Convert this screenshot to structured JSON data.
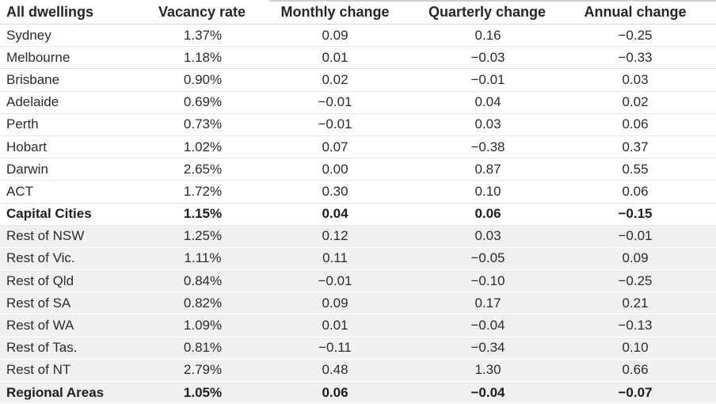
{
  "headers": [
    "All dwellings",
    "Vacancy rate",
    "Monthly change",
    "Quarterly change",
    "Annual change"
  ],
  "rows": [
    {
      "name": "Sydney",
      "vacancy": "1.37%",
      "monthly": "0.09",
      "quarterly": "0.16",
      "annual": "−0.25"
    },
    {
      "name": "Melbourne",
      "vacancy": "1.18%",
      "monthly": "0.01",
      "quarterly": "−0.03",
      "annual": "−0.33"
    },
    {
      "name": "Brisbane",
      "vacancy": "0.90%",
      "monthly": "0.02",
      "quarterly": "−0.01",
      "annual": "0.03"
    },
    {
      "name": "Adelaide",
      "vacancy": "0.69%",
      "monthly": "−0.01",
      "quarterly": "0.04",
      "annual": "0.02"
    },
    {
      "name": "Perth",
      "vacancy": "0.73%",
      "monthly": "−0.01",
      "quarterly": "0.03",
      "annual": "0.06"
    },
    {
      "name": "Hobart",
      "vacancy": "1.02%",
      "monthly": "0.07",
      "quarterly": "−0.38",
      "annual": "0.37"
    },
    {
      "name": "Darwin",
      "vacancy": "2.65%",
      "monthly": "0.00",
      "quarterly": "0.87",
      "annual": "0.55"
    },
    {
      "name": "ACT",
      "vacancy": "1.72%",
      "monthly": "0.30",
      "quarterly": "0.10",
      "annual": "0.06"
    },
    {
      "name": "Capital Cities",
      "vacancy": "1.15%",
      "monthly": "0.04",
      "quarterly": "0.06",
      "annual": "−0.15"
    },
    {
      "name": "Rest of NSW",
      "vacancy": "1.25%",
      "monthly": "0.12",
      "quarterly": "0.03",
      "annual": "−0.01"
    },
    {
      "name": "Rest of Vic.",
      "vacancy": "1.11%",
      "monthly": "0.11",
      "quarterly": "−0.05",
      "annual": "0.09"
    },
    {
      "name": "Rest of Qld",
      "vacancy": "0.84%",
      "monthly": "−0.01",
      "quarterly": "−0.10",
      "annual": "−0.25"
    },
    {
      "name": "Rest of SA",
      "vacancy": "0.82%",
      "monthly": "0.09",
      "quarterly": "0.17",
      "annual": "0.21"
    },
    {
      "name": "Rest of WA",
      "vacancy": "1.09%",
      "monthly": "0.01",
      "quarterly": "−0.04",
      "annual": "−0.13"
    },
    {
      "name": "Rest of Tas.",
      "vacancy": "0.81%",
      "monthly": "−0.11",
      "quarterly": "−0.34",
      "annual": "0.10"
    },
    {
      "name": "Rest of NT",
      "vacancy": "2.79%",
      "monthly": "0.48",
      "quarterly": "1.30",
      "annual": "0.66"
    },
    {
      "name": "Regional Areas",
      "vacancy": "1.05%",
      "monthly": "0.06",
      "quarterly": "−0.04",
      "annual": "−0.07"
    }
  ]
}
